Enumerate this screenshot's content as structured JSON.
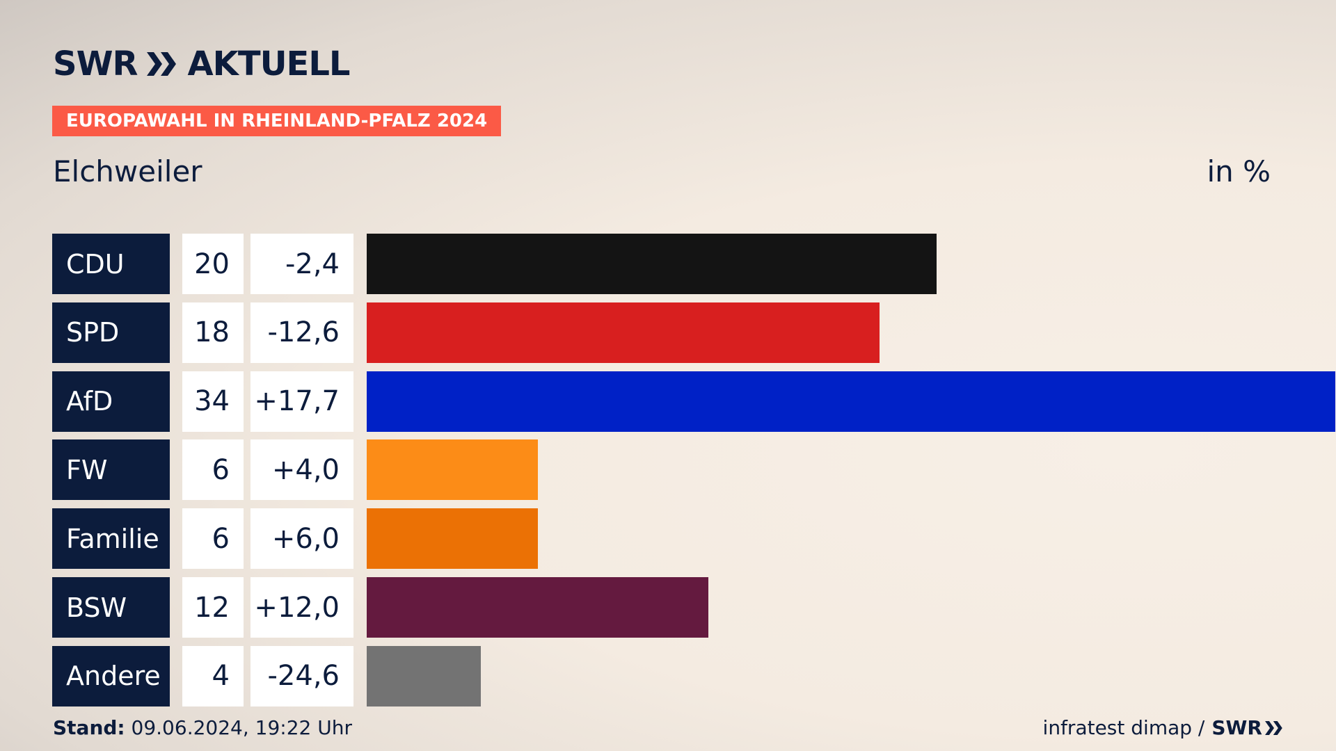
{
  "header": {
    "logo_left": "SWR",
    "logo_right": "AKTUELL",
    "topic": "EUROPAWAHL IN RHEINLAND-PFALZ 2024",
    "subtitle": "Elchweiler",
    "unit": "in %"
  },
  "footer": {
    "stand_label": "Stand:",
    "stand_value": "09.06.2024, 19:22 Uhr",
    "source": "infratest dimap /",
    "source_logo": "SWR"
  },
  "chart_data": {
    "type": "bar",
    "orientation": "horizontal",
    "categories": [
      "CDU",
      "SPD",
      "AfD",
      "FW",
      "Familie",
      "BSW",
      "Andere"
    ],
    "values": [
      20,
      18,
      34,
      6,
      6,
      12,
      4
    ],
    "values_label": [
      "20",
      "18",
      "34",
      "6",
      "6",
      "12",
      "4"
    ],
    "changes": [
      "-2,4",
      "-12,6",
      "+17,7",
      "+4,0",
      "+6,0",
      "+12,0",
      "-24,6"
    ],
    "colors": [
      "#141414",
      "#d81f1f",
      "#0021c6",
      "#fc8c17",
      "#eb7105",
      "#641a3f",
      "#737373"
    ],
    "xlim": [
      0,
      34
    ],
    "title": "",
    "xlabel": "",
    "ylabel": ""
  }
}
